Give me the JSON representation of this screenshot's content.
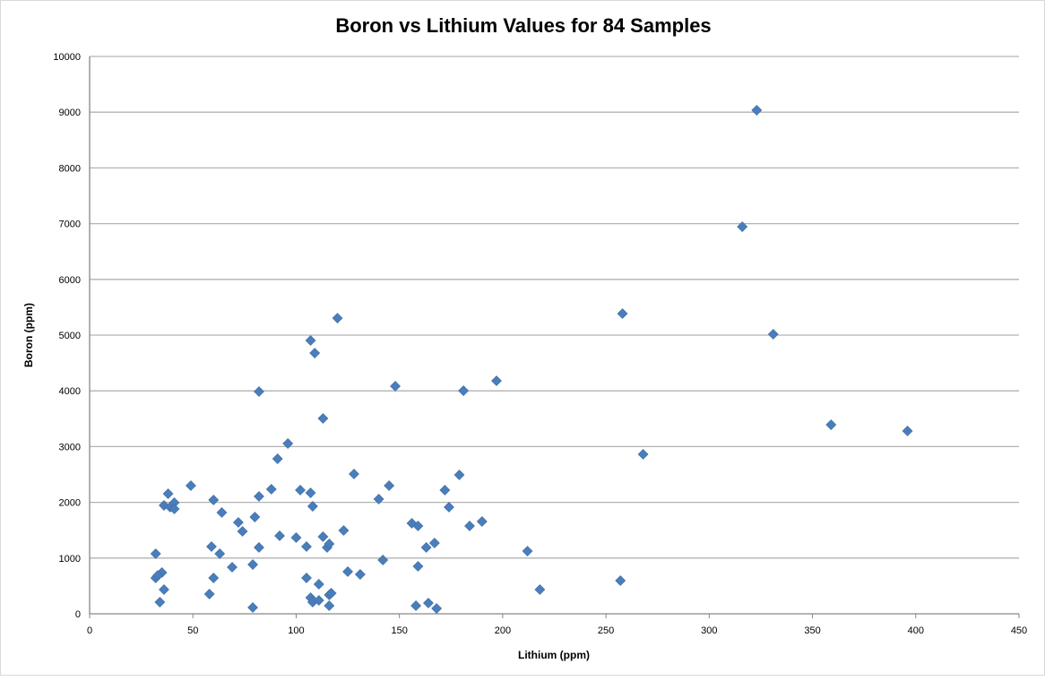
{
  "chart_data": {
    "type": "scatter",
    "title": "Boron vs Lithium Values for 84 Samples",
    "xlabel": "Lithium (ppm)",
    "ylabel": "Boron (ppm)",
    "xlim": [
      0,
      450
    ],
    "ylim": [
      0,
      10000
    ],
    "xticks": [
      0,
      50,
      100,
      150,
      200,
      250,
      300,
      350,
      400,
      450
    ],
    "yticks": [
      0,
      1000,
      2000,
      3000,
      4000,
      5000,
      6000,
      7000,
      8000,
      9000,
      10000
    ],
    "grid": "horizontal",
    "marker_color": "#4a7ebb",
    "points": [
      [
        32,
        1077
      ],
      [
        32,
        643
      ],
      [
        35,
        740
      ],
      [
        33,
        690
      ],
      [
        36,
        434
      ],
      [
        34,
        209
      ],
      [
        38,
        2154
      ],
      [
        36,
        1945
      ],
      [
        39,
        1913
      ],
      [
        41,
        1994
      ],
      [
        41,
        1881
      ],
      [
        49,
        2299
      ],
      [
        59,
        1206
      ],
      [
        60,
        2042
      ],
      [
        60,
        643
      ],
      [
        58,
        354
      ],
      [
        64,
        1817
      ],
      [
        63,
        1077
      ],
      [
        69,
        836
      ],
      [
        72,
        1640
      ],
      [
        74,
        1479
      ],
      [
        79,
        884
      ],
      [
        80,
        1736
      ],
      [
        79,
        113
      ],
      [
        82,
        2106
      ],
      [
        82,
        1190
      ],
      [
        82,
        3987
      ],
      [
        88,
        2235
      ],
      [
        91,
        2781
      ],
      [
        92,
        1399
      ],
      [
        96,
        3055
      ],
      [
        100,
        1367
      ],
      [
        102,
        2219
      ],
      [
        105,
        643
      ],
      [
        105,
        1206
      ],
      [
        107,
        2170
      ],
      [
        107,
        4904
      ],
      [
        108,
        1929
      ],
      [
        107,
        289
      ],
      [
        108,
        209
      ],
      [
        109,
        4678
      ],
      [
        111,
        241
      ],
      [
        111,
        531
      ],
      [
        113,
        1383
      ],
      [
        113,
        3505
      ],
      [
        115,
        1190
      ],
      [
        116,
        338
      ],
      [
        116,
        1254
      ],
      [
        117,
        370
      ],
      [
        116,
        145
      ],
      [
        120,
        5305
      ],
      [
        123,
        1495
      ],
      [
        125,
        756
      ],
      [
        128,
        2508
      ],
      [
        131,
        707
      ],
      [
        140,
        2058
      ],
      [
        142,
        965
      ],
      [
        145,
        2299
      ],
      [
        148,
        4084
      ],
      [
        156,
        1624
      ],
      [
        159,
        1576
      ],
      [
        158,
        145
      ],
      [
        159,
        852
      ],
      [
        163,
        1190
      ],
      [
        164,
        193
      ],
      [
        167,
        1270
      ],
      [
        168,
        96
      ],
      [
        172,
        2219
      ],
      [
        174,
        1913
      ],
      [
        179,
        2492
      ],
      [
        181,
        4003
      ],
      [
        184,
        1576
      ],
      [
        190,
        1656
      ],
      [
        197,
        4180
      ],
      [
        212,
        1125
      ],
      [
        218,
        434
      ],
      [
        257,
        595
      ],
      [
        258,
        5386
      ],
      [
        268,
        2862
      ],
      [
        316,
        6945
      ],
      [
        323,
        9035
      ],
      [
        331,
        5016
      ],
      [
        359,
        3392
      ],
      [
        396,
        3280
      ]
    ]
  }
}
